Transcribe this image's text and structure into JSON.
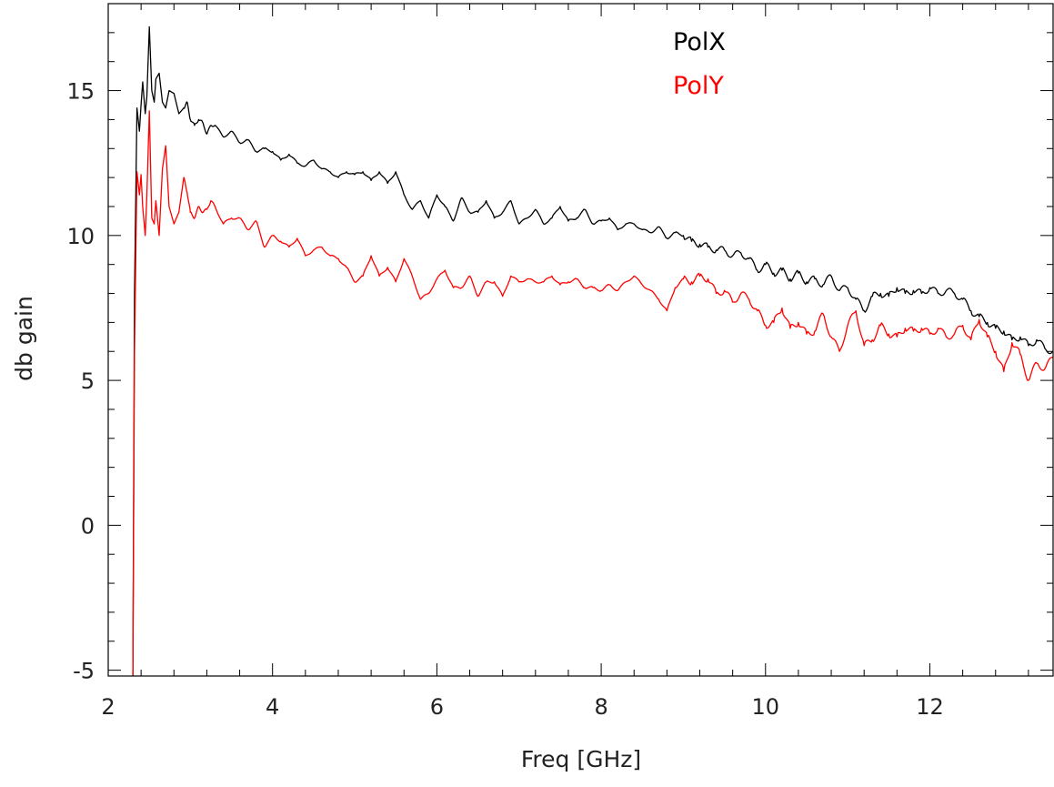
{
  "chart_data": {
    "type": "line",
    "title": "",
    "xlabel": "Freq [GHz]",
    "ylabel": "db gain",
    "xlim": [
      2.0,
      13.5
    ],
    "ylim": [
      -5.2,
      18.0
    ],
    "x_ticks": [
      2,
      4,
      6,
      8,
      10,
      12
    ],
    "x_tick_labels": [
      "2",
      "4",
      "6",
      "8",
      "10",
      "12"
    ],
    "y_ticks": [
      -5,
      0,
      5,
      10,
      15
    ],
    "y_tick_labels": [
      "-5",
      "0",
      "5",
      "10",
      "15"
    ],
    "x_minor_step": 0.4,
    "y_minor_step": 1,
    "grid": false,
    "legend_position": "top-right",
    "series": [
      {
        "name": "PolX",
        "color": "#000000",
        "x": [
          2.3,
          2.32,
          2.35,
          2.38,
          2.4,
          2.42,
          2.45,
          2.47,
          2.5,
          2.53,
          2.56,
          2.58,
          2.62,
          2.66,
          2.7,
          2.74,
          2.8,
          2.86,
          2.92,
          2.96,
          3.0,
          3.05,
          3.1,
          3.15,
          3.2,
          3.25,
          3.3,
          3.4,
          3.5,
          3.6,
          3.7,
          3.8,
          3.9,
          4.0,
          4.1,
          4.2,
          4.3,
          4.4,
          4.5,
          4.6,
          4.7,
          4.8,
          4.9,
          5.0,
          5.1,
          5.2,
          5.3,
          5.4,
          5.5,
          5.6,
          5.7,
          5.8,
          5.9,
          6.0,
          6.1,
          6.2,
          6.3,
          6.4,
          6.5,
          6.6,
          6.7,
          6.8,
          6.9,
          7.0,
          7.1,
          7.2,
          7.3,
          7.4,
          7.5,
          7.6,
          7.7,
          7.8,
          7.9,
          8.0,
          8.1,
          8.2,
          8.3,
          8.4,
          8.5,
          8.6,
          8.7,
          8.8,
          8.9,
          9.0,
          9.1,
          9.2,
          9.3,
          9.4,
          9.5,
          9.6,
          9.7,
          9.8,
          9.9,
          10.0,
          10.1,
          10.2,
          10.3,
          10.4,
          10.5,
          10.6,
          10.7,
          10.8,
          10.9,
          11.0,
          11.1,
          11.2,
          11.3,
          11.4,
          11.5,
          11.6,
          11.7,
          11.8,
          11.9,
          12.0,
          12.1,
          12.2,
          12.3,
          12.4,
          12.5,
          12.6,
          12.7,
          12.8,
          12.9,
          13.0,
          13.1,
          13.2,
          13.3,
          13.4,
          13.5
        ],
        "y": [
          -5.2,
          8.0,
          14.4,
          13.6,
          14.5,
          15.3,
          14.2,
          14.8,
          17.2,
          15.0,
          14.6,
          15.4,
          15.6,
          14.6,
          14.4,
          15.0,
          14.9,
          14.2,
          14.4,
          14.6,
          14.0,
          13.8,
          14.0,
          13.9,
          13.5,
          13.8,
          13.8,
          13.4,
          13.6,
          13.2,
          13.3,
          12.9,
          13.0,
          12.9,
          12.6,
          12.8,
          12.5,
          12.4,
          12.6,
          12.3,
          12.2,
          12.0,
          12.2,
          12.1,
          12.2,
          11.9,
          12.2,
          11.8,
          12.2,
          11.4,
          10.9,
          11.2,
          10.6,
          11.4,
          11.0,
          10.5,
          11.3,
          10.8,
          10.8,
          11.2,
          10.6,
          10.8,
          11.2,
          10.4,
          10.6,
          10.9,
          10.4,
          10.6,
          11.0,
          10.5,
          10.6,
          10.9,
          10.4,
          10.5,
          10.6,
          10.2,
          10.4,
          10.4,
          10.2,
          10.1,
          10.3,
          9.9,
          10.1,
          10.0,
          9.8,
          9.7,
          9.6,
          9.5,
          9.5,
          9.3,
          9.4,
          9.2,
          8.8,
          9.0,
          8.7,
          8.8,
          8.5,
          8.7,
          8.4,
          8.5,
          8.3,
          8.6,
          8.1,
          8.2,
          7.8,
          7.4,
          7.9,
          8.0,
          7.9,
          8.2,
          8.0,
          8.1,
          8.0,
          8.2,
          8.0,
          8.1,
          8.0,
          7.8,
          7.4,
          7.2,
          7.0,
          6.8,
          6.7,
          6.4,
          6.5,
          6.2,
          6.4,
          6.1,
          6.0
        ]
      },
      {
        "name": "PolY",
        "color": "#ff0000",
        "x": [
          2.3,
          2.32,
          2.35,
          2.38,
          2.4,
          2.42,
          2.45,
          2.47,
          2.5,
          2.53,
          2.56,
          2.58,
          2.62,
          2.66,
          2.7,
          2.74,
          2.8,
          2.86,
          2.92,
          2.96,
          3.0,
          3.05,
          3.1,
          3.15,
          3.2,
          3.25,
          3.3,
          3.4,
          3.5,
          3.6,
          3.7,
          3.8,
          3.9,
          4.0,
          4.1,
          4.2,
          4.3,
          4.4,
          4.5,
          4.6,
          4.7,
          4.8,
          4.9,
          5.0,
          5.1,
          5.2,
          5.3,
          5.4,
          5.5,
          5.6,
          5.7,
          5.8,
          5.9,
          6.0,
          6.1,
          6.2,
          6.3,
          6.4,
          6.5,
          6.6,
          6.7,
          6.8,
          6.9,
          7.0,
          7.1,
          7.2,
          7.3,
          7.4,
          7.5,
          7.6,
          7.7,
          7.8,
          7.9,
          8.0,
          8.1,
          8.2,
          8.3,
          8.4,
          8.5,
          8.6,
          8.7,
          8.8,
          8.9,
          9.0,
          9.1,
          9.2,
          9.3,
          9.4,
          9.5,
          9.6,
          9.7,
          9.8,
          9.9,
          10.0,
          10.1,
          10.2,
          10.3,
          10.4,
          10.5,
          10.6,
          10.7,
          10.8,
          10.9,
          11.0,
          11.1,
          11.2,
          11.3,
          11.4,
          11.5,
          11.6,
          11.7,
          11.8,
          11.9,
          12.0,
          12.1,
          12.2,
          12.3,
          12.4,
          12.5,
          12.6,
          12.7,
          12.8,
          12.9,
          13.0,
          13.1,
          13.2,
          13.3,
          13.4,
          13.5
        ],
        "y": [
          -5.2,
          6.0,
          12.2,
          11.4,
          12.1,
          11.0,
          10.0,
          11.4,
          14.3,
          10.6,
          10.4,
          11.2,
          10.0,
          12.3,
          13.1,
          11.0,
          10.4,
          10.8,
          12.0,
          11.5,
          10.8,
          10.6,
          11.0,
          10.8,
          10.9,
          11.2,
          11.0,
          10.4,
          10.6,
          10.6,
          10.2,
          10.5,
          9.6,
          10.0,
          9.8,
          9.6,
          9.9,
          9.3,
          9.5,
          9.6,
          9.3,
          9.2,
          8.9,
          8.4,
          8.6,
          9.3,
          8.6,
          8.9,
          8.4,
          9.2,
          8.6,
          7.8,
          8.0,
          8.5,
          8.8,
          8.2,
          8.2,
          8.6,
          7.9,
          8.4,
          8.4,
          7.9,
          8.6,
          8.4,
          8.5,
          8.4,
          8.4,
          8.6,
          8.3,
          8.4,
          8.5,
          8.2,
          8.2,
          8.1,
          8.3,
          8.1,
          8.4,
          8.6,
          8.3,
          8.1,
          7.8,
          7.4,
          8.2,
          8.5,
          8.4,
          8.6,
          8.5,
          8.0,
          8.1,
          7.7,
          8.0,
          7.8,
          7.4,
          6.9,
          7.0,
          7.5,
          6.8,
          7.0,
          6.6,
          6.7,
          7.3,
          6.5,
          6.0,
          6.9,
          7.4,
          6.2,
          6.4,
          6.9,
          6.6,
          6.5,
          6.8,
          6.7,
          6.8,
          6.6,
          6.8,
          6.5,
          6.6,
          6.9,
          6.4,
          7.1,
          6.5,
          6.0,
          5.3,
          6.3,
          5.9,
          5.0,
          5.6,
          5.4,
          5.8
        ]
      }
    ]
  }
}
